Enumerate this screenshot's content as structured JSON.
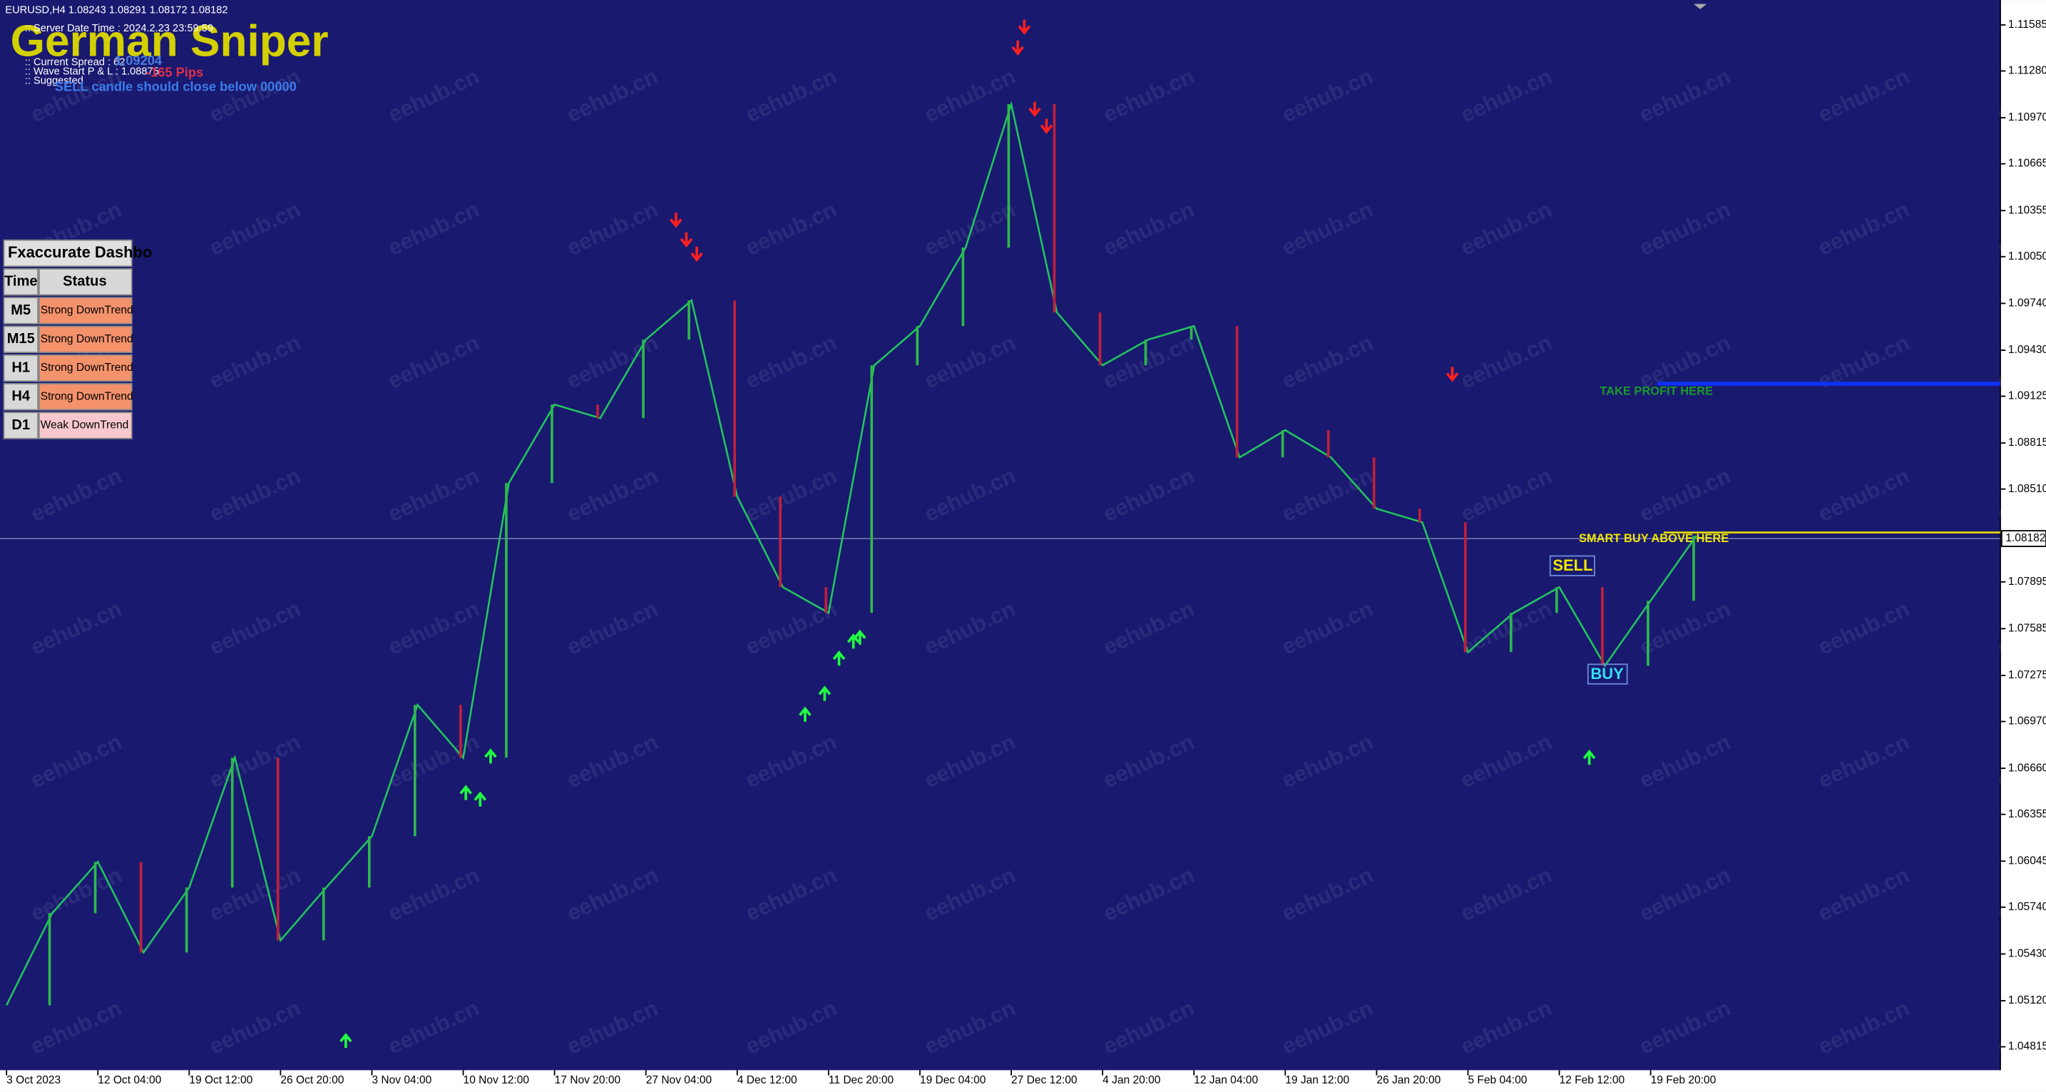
{
  "header": {
    "symbol_line": "EURUSD,H4  1.08243 1.08291 1.08172 1.08182",
    "indicator_title": "German Sniper",
    "info_lines": [
      ":: Server Date Time : 2024.2.23   23:59:59",
      ":: Current Spread : 62",
      ":: Wave Start P & L : 1.08875",
      ":: Suggested"
    ],
    "info_overlay": [
      "1.09204",
      "-165 Pips",
      "SELL candle should close below 00000"
    ]
  },
  "dashboard": {
    "title": "Fxaccurate Dashbo",
    "columns": [
      "Time",
      "Status"
    ],
    "rows": [
      [
        "M5",
        "Strong DownTrend"
      ],
      [
        "M15",
        "Strong DownTrend"
      ],
      [
        "H1",
        "Strong DownTrend"
      ],
      [
        "H4",
        "Strong DownTrend"
      ],
      [
        "D1",
        "Weak DownTrend"
      ]
    ]
  },
  "watermark": "eehub.cn",
  "chart_data": {
    "type": "line",
    "color": "#22c55e",
    "categories": [
      "3 Oct 2023",
      null,
      "12 Oct 04:00",
      null,
      "19 Oct 12:00",
      null,
      "26 Oct 20:00",
      null,
      "3 Nov 04:00",
      null,
      "10 Nov 12:00",
      null,
      "17 Nov 20:00",
      null,
      "27 Nov 04:00",
      null,
      "4 Dec 12:00",
      null,
      "11 Dec 20:00",
      null,
      "19 Dec 04:00",
      null,
      "27 Dec 12:00",
      null,
      "4 Jan 20:00",
      null,
      "12 Jan 04:00",
      null,
      "19 Jan 12:00",
      null,
      "26 Jan 20:00",
      null,
      "5 Feb 04:00",
      null,
      "12 Feb 12:00",
      null,
      "19 Feb 20:00",
      null
    ],
    "values": [
      1.0509,
      1.057,
      1.0604,
      1.0544,
      1.0587,
      1.0673,
      1.0552,
      1.0587,
      1.0621,
      1.0708,
      1.0673,
      1.0855,
      1.0907,
      1.0898,
      1.095,
      1.0976,
      1.0846,
      1.0786,
      1.0769,
      1.0933,
      1.0959,
      1.1011,
      1.1106,
      1.0968,
      1.0933,
      1.095,
      1.0959,
      1.0872,
      1.089,
      1.0872,
      1.0838,
      1.0829,
      1.0743,
      1.0769,
      1.0786,
      1.0734,
      1.0777,
      1.082
    ],
    "ylim": [
      1.0466,
      1.1175
    ],
    "yticks": [
      1.11585,
      {
        "value": 1.1128,
        "label": "1.11280"
      },
      {
        "value": 1.1097,
        "label": "1.10970"
      },
      1.10665,
      1.10355,
      {
        "value": 1.1005,
        "label": "1.10050"
      },
      {
        "value": 1.0974,
        "label": "1.09740"
      },
      {
        "value": 1.0943,
        "label": "1.09430"
      },
      1.09125,
      1.08815,
      {
        "value": 1.0851,
        "label": "1.08510"
      },
      1.07895,
      1.07585,
      1.07275,
      {
        "value": 1.0697,
        "label": "1.06970"
      },
      {
        "value": 1.0666,
        "label": "1.06660"
      },
      1.06355,
      1.06045,
      {
        "value": 1.0574,
        "label": "1.05740"
      },
      {
        "value": 1.0543,
        "label": "1.05430"
      },
      {
        "value": 1.0512,
        "label": "1.05120"
      },
      1.04815
    ],
    "current_price": 1.08182,
    "annotations": [
      "TAKE PROFIT HERE",
      "SMART BUY ABOVE HERE",
      "SELL",
      "BUY"
    ]
  }
}
